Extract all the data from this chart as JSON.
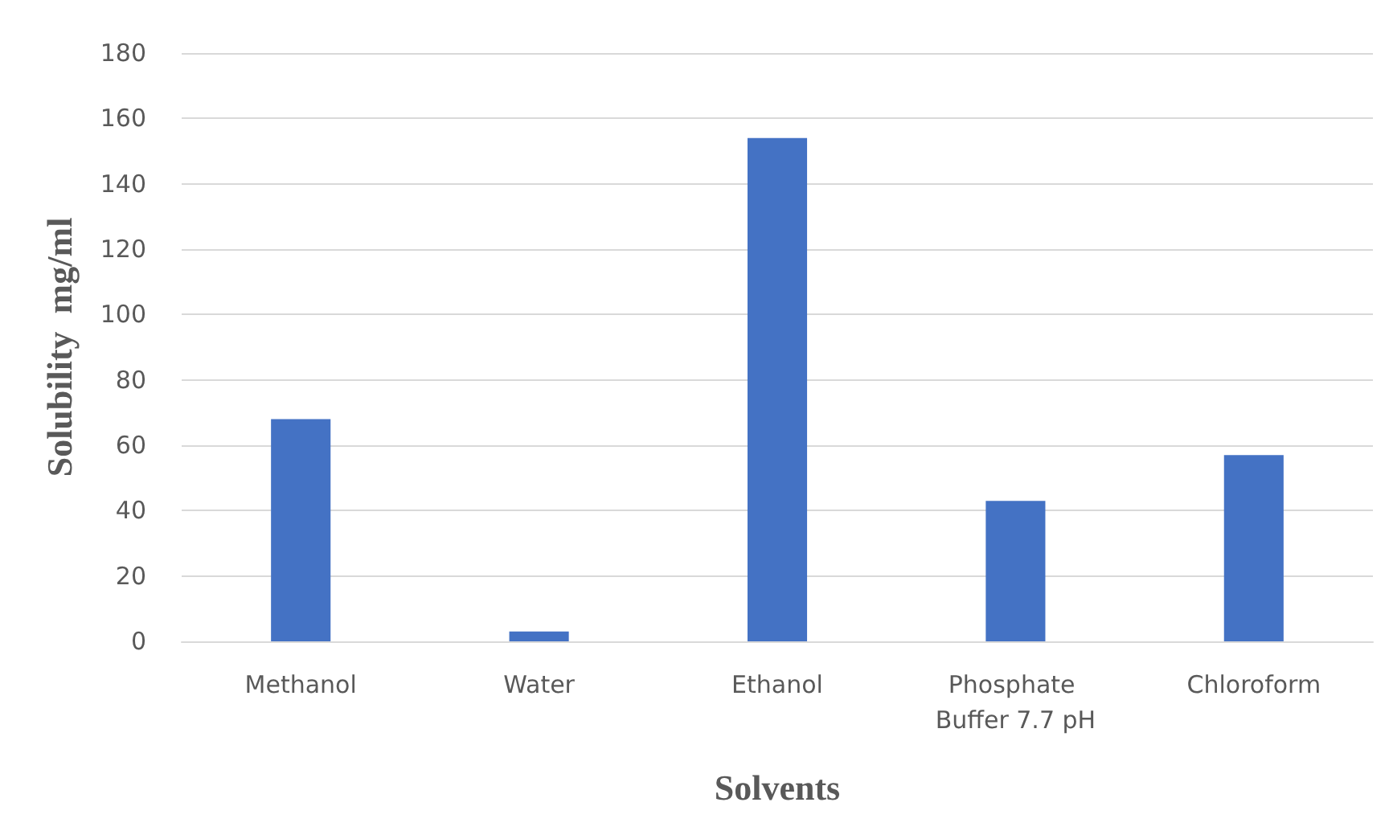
{
  "chart_data": {
    "type": "bar",
    "xlabel": "Solvents",
    "ylabel": "Solubility  mg/ml",
    "categories": [
      "Methanol",
      "Water",
      "Ethanol",
      "Phosphate Buffer 7.7 pH",
      "Chloroform"
    ],
    "values": [
      68,
      3,
      154,
      43,
      57
    ],
    "color": "#4472c4",
    "ylim": [
      0,
      180
    ],
    "yticks": [
      0,
      20,
      40,
      60,
      80,
      100,
      120,
      140,
      160,
      180
    ],
    "grid": "y"
  }
}
